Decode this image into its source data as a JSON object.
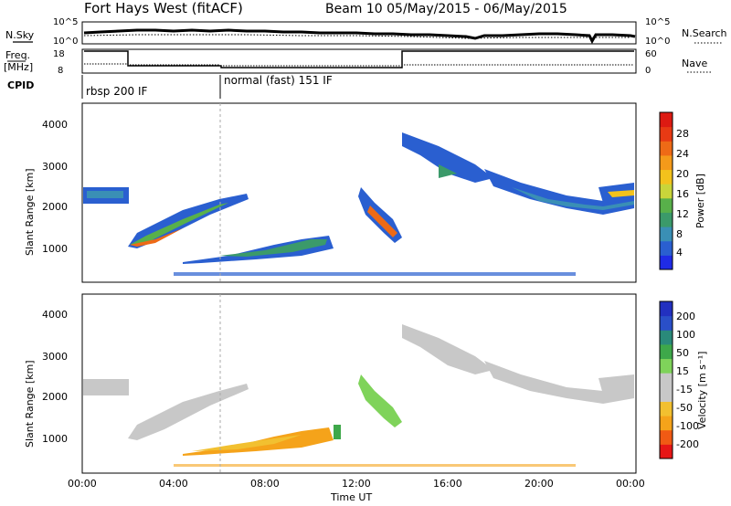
{
  "header": {
    "site": "Fort Hays West (fitACF)",
    "beam_info": "Beam 10  05/May/2015 - 06/May/2015"
  },
  "noise_panel": {
    "left_label": "N.Sky",
    "right_label": "N.Search",
    "ytick_top": "10^5",
    "ytick_bottom": "10^0",
    "rtick_top": "10^5",
    "rtick_bottom": "10^0"
  },
  "freq_panel": {
    "left_label_line1": "Freq.",
    "left_label_line2": "[MHz]",
    "right_label": "Nave",
    "ltick_top": "18",
    "ltick_bottom": "8",
    "rtick_top": "60",
    "rtick_bottom": "0"
  },
  "cpid_panel": {
    "label": "CPID",
    "modes": [
      "rbsp 200 IF",
      "normal (fast) 151 IF"
    ]
  },
  "power_panel": {
    "ylabel": "Slant Range [km]",
    "yticks": [
      "1000",
      "2000",
      "3000",
      "4000"
    ],
    "colorbar_label": "Power [dB]",
    "colorbar_ticks": [
      "4",
      "8",
      "12",
      "16",
      "20",
      "24",
      "28"
    ],
    "colorbar_colors": [
      "#1f2be6",
      "#2a5fd0",
      "#3a8fb5",
      "#3b9a6a",
      "#58b04a",
      "#c9d53a",
      "#f3c21c",
      "#f49a1a",
      "#ee6a16",
      "#e83a14",
      "#dd1a12"
    ]
  },
  "velocity_panel": {
    "ylabel": "Slant Range [km]",
    "yticks": [
      "1000",
      "2000",
      "3000",
      "4000"
    ],
    "colorbar_label": "Velocity [m s⁻¹]",
    "colorbar_ticks": [
      "-200",
      "-100",
      "-50",
      "-15",
      "15",
      "50",
      "100",
      "200"
    ],
    "colorbar_colors": [
      "#e61616",
      "#f05a14",
      "#f5a31a",
      "#f2c030",
      "#c8c8c8",
      "#c8c8c8",
      "#7fd35a",
      "#3ea84a",
      "#2a8a7a",
      "#2a4fc8",
      "#2230c0"
    ]
  },
  "x_axis": {
    "ticks": [
      "00:00",
      "04:00",
      "08:00",
      "12:00",
      "16:00",
      "20:00",
      "00:00"
    ],
    "label": "Time UT"
  }
}
